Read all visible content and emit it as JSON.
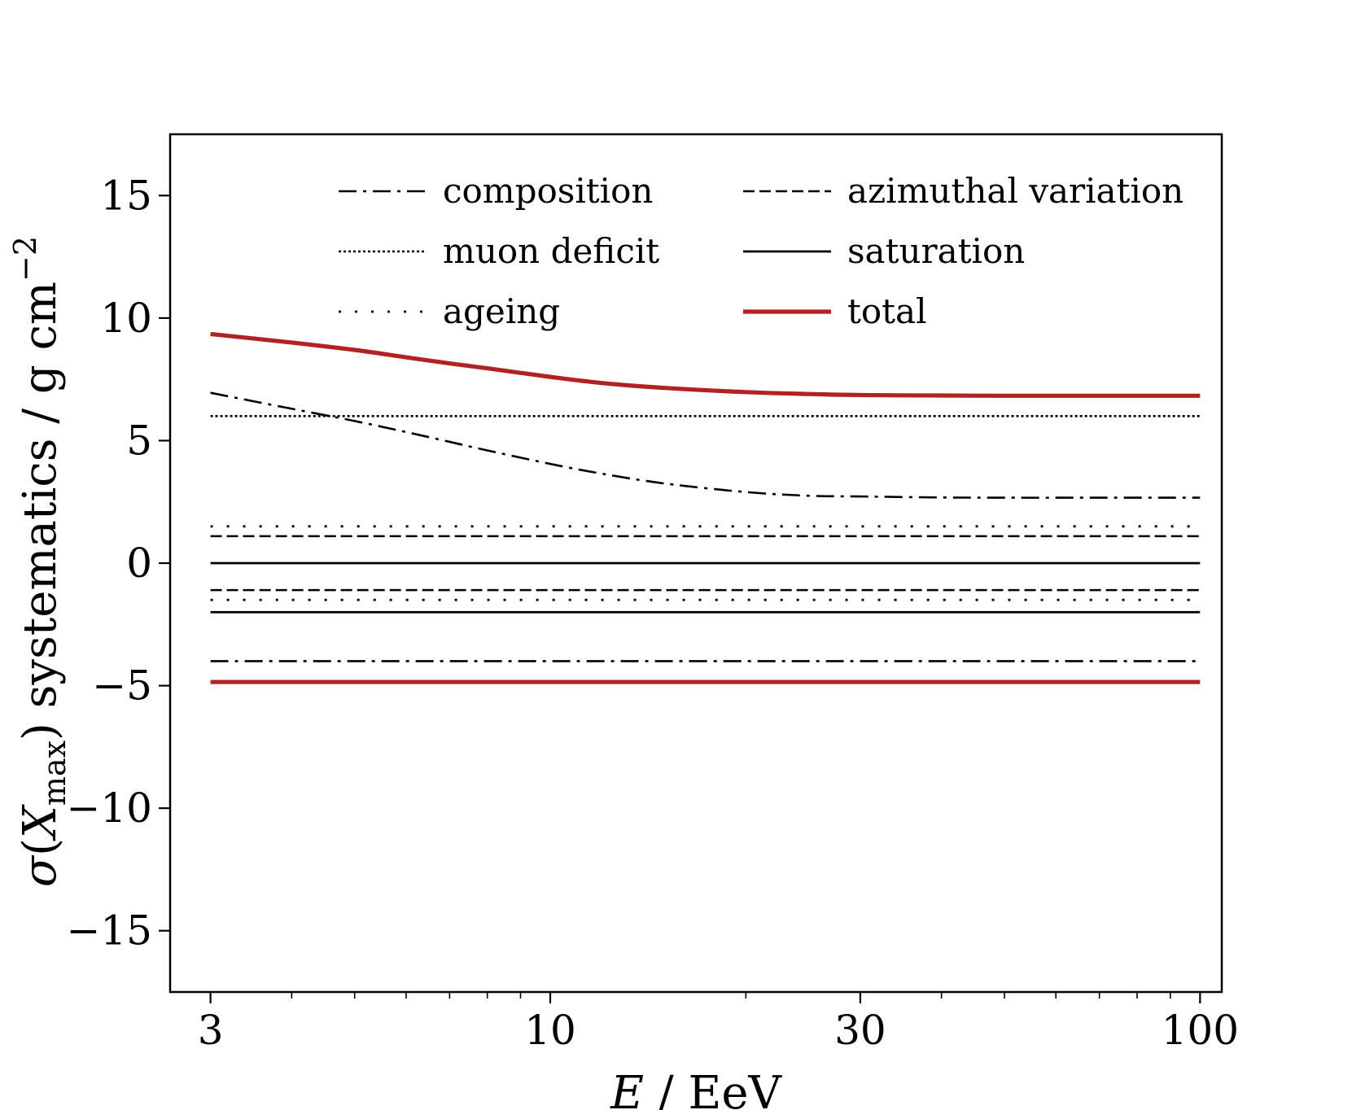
{
  "chart_data": {
    "type": "line",
    "title": "",
    "xlabel_parts": {
      "symbol": "E",
      "rest": " / EeV"
    },
    "ylabel_parts": {
      "sigma": "σ",
      "open": "(",
      "symbol": "X",
      "subscript": "max",
      "close": ")",
      "rest": " systematics / g cm",
      "superscript": "−2"
    },
    "xscale": "log",
    "xlim": [
      2.6,
      108
    ],
    "ylim": [
      -17.5,
      17.5
    ],
    "xticks": [
      3,
      10,
      30,
      100
    ],
    "xtick_labels": [
      "3",
      "10",
      "30",
      "100"
    ],
    "yticks": [
      -15,
      -10,
      -5,
      0,
      5,
      10,
      15
    ],
    "ytick_labels": [
      "−15",
      "−10",
      "−5",
      "0",
      "5",
      "10",
      "15"
    ],
    "grid": false,
    "legend_position": "top",
    "x": [
      3,
      4,
      5,
      6,
      7,
      8,
      10,
      12,
      15,
      20,
      25,
      30,
      40,
      50,
      70,
      100
    ],
    "series": [
      {
        "name": "composition",
        "style": "dashdot",
        "color": "#000000",
        "in_legend": true,
        "values": [
          6.95,
          6.3,
          5.8,
          5.35,
          4.95,
          4.6,
          4.05,
          3.65,
          3.25,
          2.9,
          2.75,
          2.72,
          2.68,
          2.67,
          2.67,
          2.67
        ]
      },
      {
        "name": "composition",
        "style": "dashdot",
        "color": "#000000",
        "in_legend": false,
        "values": [
          -4.0,
          -4.0,
          -4.0,
          -4.0,
          -4.0,
          -4.0,
          -4.0,
          -4.0,
          -4.0,
          -4.0,
          -4.0,
          -4.0,
          -4.0,
          -4.0,
          -4.0,
          -4.0
        ]
      },
      {
        "name": "azimuthal variation",
        "style": "dashed",
        "color": "#000000",
        "in_legend": true,
        "values": [
          1.1,
          1.1,
          1.1,
          1.1,
          1.1,
          1.1,
          1.1,
          1.1,
          1.1,
          1.1,
          1.1,
          1.1,
          1.1,
          1.1,
          1.1,
          1.1
        ]
      },
      {
        "name": "azimuthal variation",
        "style": "dashed",
        "color": "#000000",
        "in_legend": false,
        "values": [
          -1.1,
          -1.1,
          -1.1,
          -1.1,
          -1.1,
          -1.1,
          -1.1,
          -1.1,
          -1.1,
          -1.1,
          -1.1,
          -1.1,
          -1.1,
          -1.1,
          -1.1,
          -1.1
        ]
      },
      {
        "name": "muon deficit",
        "style": "dotted",
        "color": "#000000",
        "in_legend": true,
        "values": [
          6.0,
          6.0,
          6.0,
          6.0,
          6.0,
          6.0,
          6.0,
          6.0,
          6.0,
          6.0,
          6.0,
          6.0,
          6.0,
          6.0,
          6.0,
          6.0
        ]
      },
      {
        "name": "saturation",
        "style": "solid",
        "color": "#000000",
        "in_legend": true,
        "values": [
          0.0,
          0.0,
          0.0,
          0.0,
          0.0,
          0.0,
          0.0,
          0.0,
          0.0,
          0.0,
          0.0,
          0.0,
          0.0,
          0.0,
          0.0,
          0.0
        ]
      },
      {
        "name": "saturation",
        "style": "solid",
        "color": "#000000",
        "in_legend": false,
        "values": [
          -2.0,
          -2.0,
          -2.0,
          -2.0,
          -2.0,
          -2.0,
          -2.0,
          -2.0,
          -2.0,
          -2.0,
          -2.0,
          -2.0,
          -2.0,
          -2.0,
          -2.0,
          -2.0
        ]
      },
      {
        "name": "ageing",
        "style": "sparse-dotted",
        "color": "#000000",
        "in_legend": true,
        "values": [
          1.5,
          1.5,
          1.5,
          1.5,
          1.5,
          1.5,
          1.5,
          1.5,
          1.5,
          1.5,
          1.5,
          1.5,
          1.5,
          1.5,
          1.5,
          1.5
        ]
      },
      {
        "name": "ageing",
        "style": "sparse-dotted",
        "color": "#000000",
        "in_legend": false,
        "values": [
          -1.5,
          -1.5,
          -1.5,
          -1.5,
          -1.5,
          -1.5,
          -1.5,
          -1.5,
          -1.5,
          -1.5,
          -1.5,
          -1.5,
          -1.5,
          -1.5,
          -1.5,
          -1.5
        ]
      },
      {
        "name": "total",
        "style": "solid-thick",
        "color": "#b22222",
        "in_legend": true,
        "values": [
          9.35,
          9.0,
          8.7,
          8.4,
          8.15,
          7.95,
          7.6,
          7.35,
          7.15,
          6.98,
          6.9,
          6.86,
          6.84,
          6.83,
          6.83,
          6.83
        ]
      },
      {
        "name": "total",
        "style": "solid-thick",
        "color": "#b22222",
        "in_legend": false,
        "values": [
          -4.85,
          -4.85,
          -4.85,
          -4.85,
          -4.85,
          -4.85,
          -4.85,
          -4.85,
          -4.85,
          -4.85,
          -4.85,
          -4.85,
          -4.85,
          -4.85,
          -4.85,
          -4.85
        ]
      }
    ],
    "legend": [
      {
        "label": "composition",
        "style": "dashdot",
        "color": "#000000",
        "column": "left",
        "row": "first"
      },
      {
        "label": "muon deficit",
        "style": "dotted",
        "color": "#000000",
        "column": "left",
        "row": "second"
      },
      {
        "label": "ageing",
        "style": "sparse-dotted",
        "color": "#000000",
        "column": "left",
        "row": "third"
      },
      {
        "label": "azimuthal variation",
        "style": "dashed",
        "color": "#000000",
        "column": "right",
        "row": "first"
      },
      {
        "label": "saturation",
        "style": "solid",
        "color": "#000000",
        "column": "right",
        "row": "second"
      },
      {
        "label": "total",
        "style": "solid-thick",
        "color": "#b22222",
        "column": "right",
        "row": "third"
      }
    ]
  }
}
